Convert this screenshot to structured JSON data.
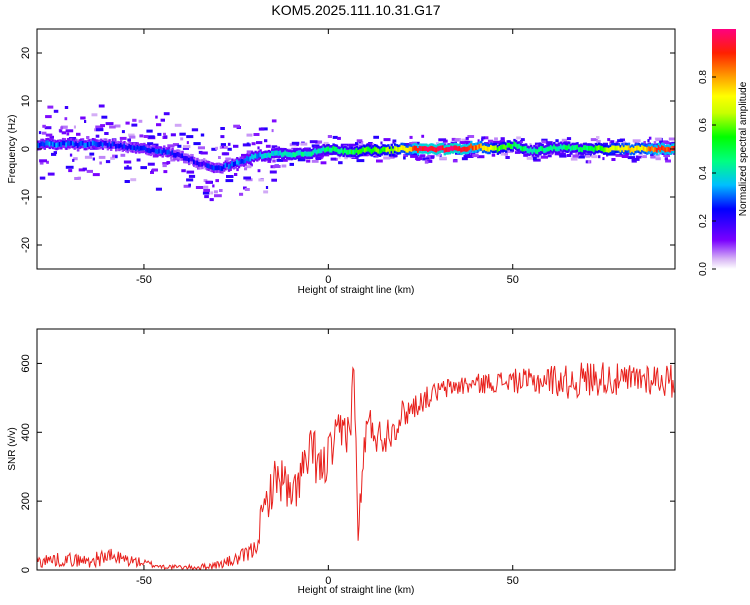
{
  "title": "KOM5.2025.111.10.31.G17",
  "chart_data": [
    {
      "type": "heatmap",
      "xlabel": "Height of straight line (km)",
      "ylabel": "Frequency (Hz)",
      "xlim": [
        -79,
        94
      ],
      "ylim": [
        -25,
        25
      ],
      "xticks": [
        -50,
        0,
        50
      ],
      "yticks": [
        -20,
        -10,
        0,
        10,
        20
      ],
      "grid": false,
      "colorbar": {
        "label": "Normalized spectral amplitude",
        "range": [
          0,
          1
        ],
        "ticks": [
          "0.0",
          "0.2",
          "0.4",
          "0.6",
          "0.8"
        ]
      },
      "ridge": {
        "x": [
          -79,
          -70,
          -60,
          -55,
          -50,
          -45,
          -40,
          -35,
          -30,
          -25,
          -20,
          -15,
          -10,
          -5,
          0,
          5,
          10,
          15,
          20,
          25,
          30,
          35,
          40,
          45,
          50,
          55,
          60,
          65,
          70,
          75,
          80,
          85,
          90,
          94
        ],
        "y": [
          1,
          1,
          1,
          0.3,
          0,
          -0.5,
          -1.5,
          -3,
          -4,
          -3,
          -1.5,
          -1,
          -1,
          -0.8,
          0,
          -0.5,
          -0.3,
          -0.3,
          0,
          0,
          0,
          0,
          0.5,
          0,
          0.8,
          -0.5,
          0.2,
          0.3,
          0,
          0,
          0,
          0,
          0,
          0
        ],
        "amplitude": [
          0.3,
          0.3,
          0.25,
          0.25,
          0.25,
          0.25,
          0.2,
          0.2,
          0.25,
          0.3,
          0.35,
          0.38,
          0.4,
          0.42,
          0.45,
          0.5,
          0.55,
          0.6,
          0.7,
          0.95,
          0.95,
          0.95,
          0.85,
          0.6,
          0.5,
          0.45,
          0.45,
          0.45,
          0.5,
          0.6,
          0.75,
          0.75,
          0.9,
          0.9
        ]
      }
    },
    {
      "type": "line",
      "xlabel": "Height of straight line (km)",
      "ylabel": "SNR (v/v)",
      "xlim": [
        -79,
        94
      ],
      "ylim": [
        0,
        700
      ],
      "xticks": [
        -50,
        0,
        50
      ],
      "yticks": [
        0,
        200,
        400,
        600
      ],
      "grid": false,
      "series": [
        {
          "color": "#e8211d",
          "x": [
            -79,
            -75,
            -70,
            -65,
            -60,
            -55,
            -50,
            -45,
            -40,
            -35,
            -30,
            -25,
            -22,
            -20,
            -18,
            -16,
            -14,
            -12,
            -10,
            -8,
            -6,
            -4,
            -2,
            0,
            2,
            4,
            6,
            7,
            8,
            9,
            10,
            12,
            14,
            16,
            18,
            20,
            25,
            30,
            35,
            40,
            45,
            50,
            55,
            60,
            65,
            70,
            75,
            80,
            85,
            90,
            94
          ],
          "y": [
            25,
            30,
            30,
            25,
            40,
            30,
            20,
            10,
            8,
            8,
            15,
            30,
            45,
            60,
            150,
            220,
            270,
            260,
            190,
            270,
            300,
            350,
            280,
            330,
            370,
            400,
            420,
            600,
            100,
            230,
            400,
            420,
            380,
            400,
            420,
            450,
            490,
            520,
            535,
            540,
            545,
            550,
            545,
            555,
            545,
            555,
            560,
            545,
            560,
            555,
            545
          ],
          "noise": [
            20,
            20,
            20,
            20,
            25,
            20,
            12,
            8,
            6,
            8,
            12,
            20,
            25,
            30,
            55,
            60,
            70,
            70,
            70,
            70,
            80,
            80,
            80,
            70,
            70,
            80,
            60,
            60,
            40,
            60,
            70,
            60,
            60,
            55,
            50,
            45,
            35,
            30,
            30,
            30,
            30,
            35,
            40,
            45,
            50,
            55,
            50,
            50,
            50,
            50,
            50
          ]
        }
      ]
    }
  ]
}
